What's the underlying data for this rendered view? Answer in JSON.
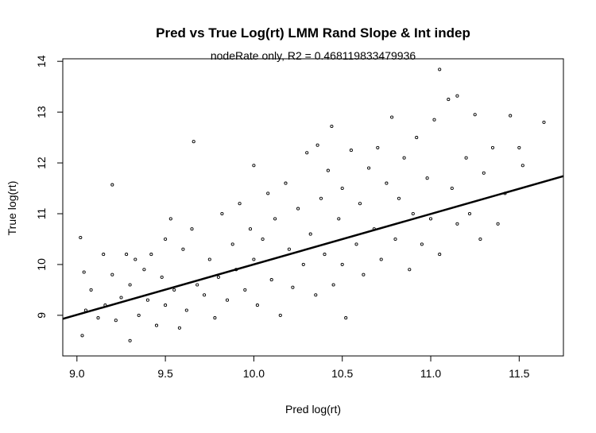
{
  "chart_data": {
    "type": "scatter",
    "title": "Pred vs True Log(rt) LMM Rand Slope & Int indep",
    "subtitle": "nodeRate only, R2 = 0.468119833479936",
    "xlabel": "Pred log(rt)",
    "ylabel": "True log(rt)",
    "xlim": [
      8.92,
      11.75
    ],
    "ylim": [
      8.2,
      14.05
    ],
    "xticks": [
      9.0,
      9.5,
      10.0,
      10.5,
      11.0,
      11.5
    ],
    "xtick_labels": [
      "9.0",
      "9.5",
      "10.0",
      "10.5",
      "11.0",
      "11.5"
    ],
    "yticks": [
      9,
      10,
      11,
      12,
      13,
      14
    ],
    "ytick_labels": [
      "9",
      "10",
      "11",
      "12",
      "13",
      "14"
    ],
    "grid": false,
    "fit_line": {
      "x": [
        8.92,
        11.75
      ],
      "y": [
        8.93,
        11.74
      ]
    },
    "points": [
      [
        9.02,
        10.53
      ],
      [
        9.03,
        8.6
      ],
      [
        9.04,
        9.85
      ],
      [
        9.05,
        9.1
      ],
      [
        9.08,
        9.5
      ],
      [
        9.12,
        8.95
      ],
      [
        9.15,
        10.2
      ],
      [
        9.16,
        9.2
      ],
      [
        9.2,
        11.57
      ],
      [
        9.2,
        9.8
      ],
      [
        9.22,
        8.9
      ],
      [
        9.25,
        9.35
      ],
      [
        9.28,
        10.2
      ],
      [
        9.3,
        9.6
      ],
      [
        9.3,
        8.5
      ],
      [
        9.33,
        10.1
      ],
      [
        9.35,
        9.0
      ],
      [
        9.38,
        9.9
      ],
      [
        9.4,
        9.3
      ],
      [
        9.42,
        10.2
      ],
      [
        9.45,
        8.8
      ],
      [
        9.48,
        9.75
      ],
      [
        9.5,
        10.5
      ],
      [
        9.5,
        9.2
      ],
      [
        9.53,
        10.9
      ],
      [
        9.55,
        9.5
      ],
      [
        9.58,
        8.75
      ],
      [
        9.6,
        10.3
      ],
      [
        9.62,
        9.1
      ],
      [
        9.65,
        10.7
      ],
      [
        9.66,
        12.42
      ],
      [
        9.68,
        9.6
      ],
      [
        9.72,
        9.4
      ],
      [
        9.75,
        10.1
      ],
      [
        9.78,
        8.95
      ],
      [
        9.8,
        9.75
      ],
      [
        9.82,
        11.0
      ],
      [
        9.85,
        9.3
      ],
      [
        9.88,
        10.4
      ],
      [
        9.9,
        9.9
      ],
      [
        9.92,
        11.2
      ],
      [
        9.95,
        9.5
      ],
      [
        9.98,
        10.7
      ],
      [
        10.0,
        10.1
      ],
      [
        10.0,
        11.95
      ],
      [
        10.02,
        9.2
      ],
      [
        10.05,
        10.5
      ],
      [
        10.08,
        11.4
      ],
      [
        10.1,
        9.7
      ],
      [
        10.12,
        10.9
      ],
      [
        10.15,
        9.0
      ],
      [
        10.18,
        11.6
      ],
      [
        10.2,
        10.3
      ],
      [
        10.22,
        9.55
      ],
      [
        10.25,
        11.1
      ],
      [
        10.28,
        10.0
      ],
      [
        10.3,
        12.2
      ],
      [
        10.32,
        10.6
      ],
      [
        10.35,
        9.4
      ],
      [
        10.36,
        12.35
      ],
      [
        10.38,
        11.3
      ],
      [
        10.4,
        10.2
      ],
      [
        10.42,
        11.85
      ],
      [
        10.44,
        12.72
      ],
      [
        10.45,
        9.6
      ],
      [
        10.48,
        10.9
      ],
      [
        10.5,
        11.5
      ],
      [
        10.5,
        10.0
      ],
      [
        10.52,
        8.95
      ],
      [
        10.55,
        12.25
      ],
      [
        10.58,
        10.4
      ],
      [
        10.6,
        11.2
      ],
      [
        10.62,
        9.8
      ],
      [
        10.65,
        11.9
      ],
      [
        10.68,
        10.7
      ],
      [
        10.7,
        12.3
      ],
      [
        10.72,
        10.1
      ],
      [
        10.75,
        11.6
      ],
      [
        10.78,
        12.9
      ],
      [
        10.8,
        10.5
      ],
      [
        10.82,
        11.3
      ],
      [
        10.85,
        12.1
      ],
      [
        10.88,
        9.9
      ],
      [
        10.9,
        11.0
      ],
      [
        10.92,
        12.5
      ],
      [
        10.95,
        10.4
      ],
      [
        10.98,
        11.7
      ],
      [
        11.0,
        10.9
      ],
      [
        11.02,
        12.85
      ],
      [
        11.05,
        13.84
      ],
      [
        11.05,
        10.2
      ],
      [
        11.1,
        13.25
      ],
      [
        11.12,
        11.5
      ],
      [
        11.15,
        10.8
      ],
      [
        11.15,
        13.32
      ],
      [
        11.2,
        12.1
      ],
      [
        11.22,
        11.0
      ],
      [
        11.25,
        12.95
      ],
      [
        11.28,
        10.5
      ],
      [
        11.3,
        11.8
      ],
      [
        11.35,
        12.3
      ],
      [
        11.38,
        10.8
      ],
      [
        11.42,
        11.4
      ],
      [
        11.45,
        12.93
      ],
      [
        11.5,
        12.3
      ],
      [
        11.52,
        11.95
      ],
      [
        11.64,
        12.8
      ]
    ]
  }
}
